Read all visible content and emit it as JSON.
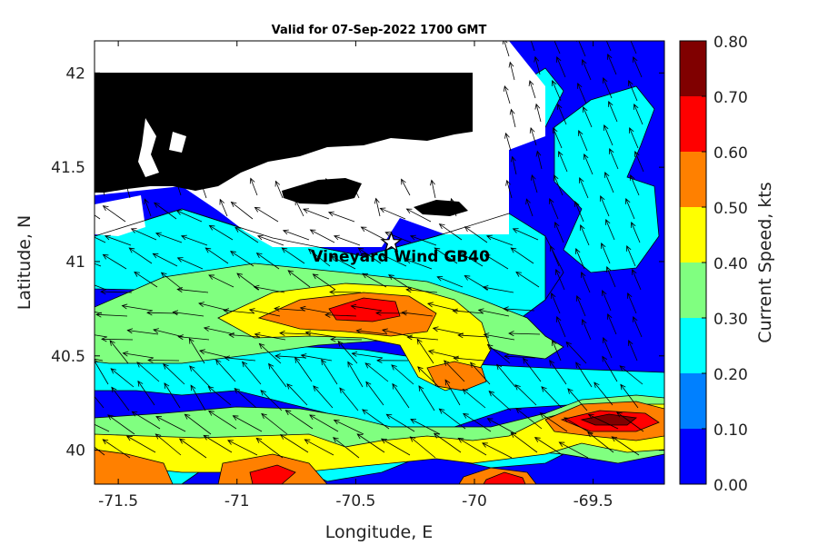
{
  "chart_data": {
    "type": "heatmap",
    "title": "Valid for 07-Sep-2022 1700 GMT",
    "xlabel": "Longitude, E",
    "ylabel": "Latitude, N",
    "xlim": [
      -71.6,
      -69.2
    ],
    "ylim": [
      39.82,
      42.17
    ],
    "x_ticks": [
      -71.5,
      -71,
      -70.5,
      -70,
      -69.5
    ],
    "y_ticks": [
      40,
      40.5,
      41,
      41.5,
      42
    ],
    "x_tick_labels": [
      "-71.5",
      "-71",
      "-70.5",
      "-70",
      "-69.5"
    ],
    "y_tick_labels": [
      "40",
      "40.5",
      "41",
      "41.5",
      "42"
    ],
    "colorbar": {
      "label": "Current Speed, kts",
      "levels": [
        0.0,
        0.1,
        0.2,
        0.3,
        0.4,
        0.5,
        0.6,
        0.7,
        0.8
      ],
      "level_labels": [
        "0.00",
        "0.10",
        "0.20",
        "0.30",
        "0.40",
        "0.50",
        "0.60",
        "0.70",
        "0.80"
      ],
      "colors": [
        "#0000ff",
        "#0080ff",
        "#00ffff",
        "#80ff80",
        "#ffff00",
        "#ff8000",
        "#ff0000",
        "#800000"
      ]
    },
    "annotation": {
      "text": "Vineyard Wind GB40",
      "lon": -70.35,
      "lat": 41.1,
      "marker": "star"
    },
    "colors": {
      "land": "#000000",
      "mask": "#ffffff",
      "contour_line": "#000000",
      "arrow": "#000000"
    },
    "grid": false
  }
}
